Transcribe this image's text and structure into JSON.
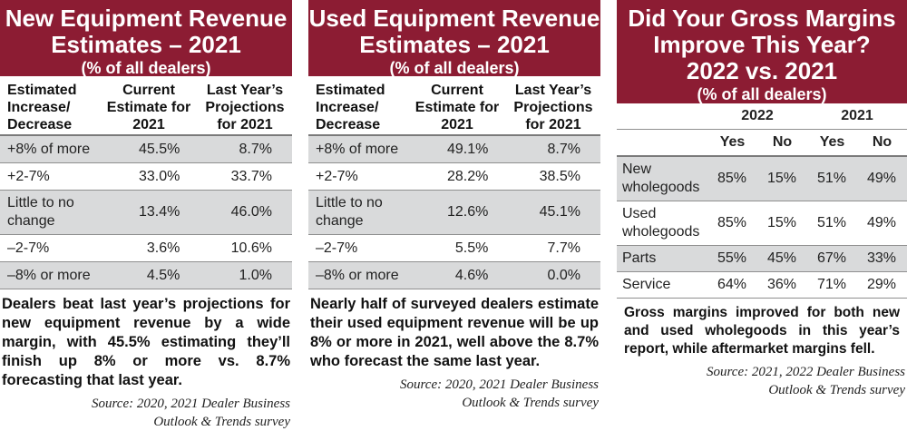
{
  "panels": {
    "new": {
      "title_line1": "New Equipment Revenue",
      "title_line2": "Estimates – 2021",
      "subtitle": "(% of all dealers)",
      "headers": [
        "Estimated Increase/ Decrease",
        "Current Estimate for 2021",
        "Last Year’s Projections for 2021"
      ],
      "rows": [
        {
          "label": "+8% of more",
          "current": "45.5%",
          "last": "8.7%"
        },
        {
          "label": "+2-7%",
          "current": "33.0%",
          "last": "33.7%"
        },
        {
          "label": "Little to no change",
          "current": "13.4%",
          "last": "46.0%"
        },
        {
          "label": "–2-7%",
          "current": "3.6%",
          "last": "10.6%"
        },
        {
          "label": "–8% or more",
          "current": "4.5%",
          "last": "1.0%"
        }
      ],
      "caption": "Dealers beat last year’s projections for new equipment revenue by a wide margin, with 45.5% estimating they’ll finish up 8% or more vs. 8.7% forecasting that last year.",
      "source_line1": "Source: 2020, 2021 Dealer Business",
      "source_line2": "Outlook & Trends survey"
    },
    "used": {
      "title_line1": "Used Equipment Revenue",
      "title_line2": "Estimates – 2021",
      "subtitle": "(% of all dealers)",
      "headers": [
        "Estimated Increase/ Decrease",
        "Current Estimate for 2021",
        "Last Year’s Projections for 2021"
      ],
      "rows": [
        {
          "label": "+8% of more",
          "current": "49.1%",
          "last": "8.7%"
        },
        {
          "label": "+2-7%",
          "current": "28.2%",
          "last": "38.5%"
        },
        {
          "label": "Little to no change",
          "current": "12.6%",
          "last": "45.1%"
        },
        {
          "label": "–2-7%",
          "current": "5.5%",
          "last": "7.7%"
        },
        {
          "label": "–8% or more",
          "current": "4.6%",
          "last": "0.0%"
        }
      ],
      "caption": "Nearly half of surveyed dealers estimate their used equipment revenue will be up 8% or more in 2021, well above the 8.7% who forecast the same last year.",
      "source_line1": "Source: 2020, 2021 Dealer Business",
      "source_line2": "Outlook & Trends survey"
    },
    "margins": {
      "title_line1": "Did Your Gross Margins",
      "title_line2": "Improve This Year?",
      "title_line3": "2022 vs. 2021",
      "subtitle": "(% of all dealers)",
      "years": [
        "2022",
        "2021"
      ],
      "yesno": [
        "Yes",
        "No",
        "Yes",
        "No"
      ],
      "rows": [
        {
          "label": "New wholegoods",
          "vals": [
            "85%",
            "15%",
            "51%",
            "49%"
          ]
        },
        {
          "label": "Used wholegoods",
          "vals": [
            "85%",
            "15%",
            "51%",
            "49%"
          ]
        },
        {
          "label": "Parts",
          "vals": [
            "55%",
            "45%",
            "67%",
            "33%"
          ]
        },
        {
          "label": "Service",
          "vals": [
            "64%",
            "36%",
            "71%",
            "29%"
          ]
        }
      ],
      "caption": "Gross margins improved for both new and used wholegoods in this year’s report, while aftermarket margins fell.",
      "source_line1": "Source: 2021, 2022 Dealer Business",
      "source_line2": "Outlook & Trends survey"
    }
  }
}
